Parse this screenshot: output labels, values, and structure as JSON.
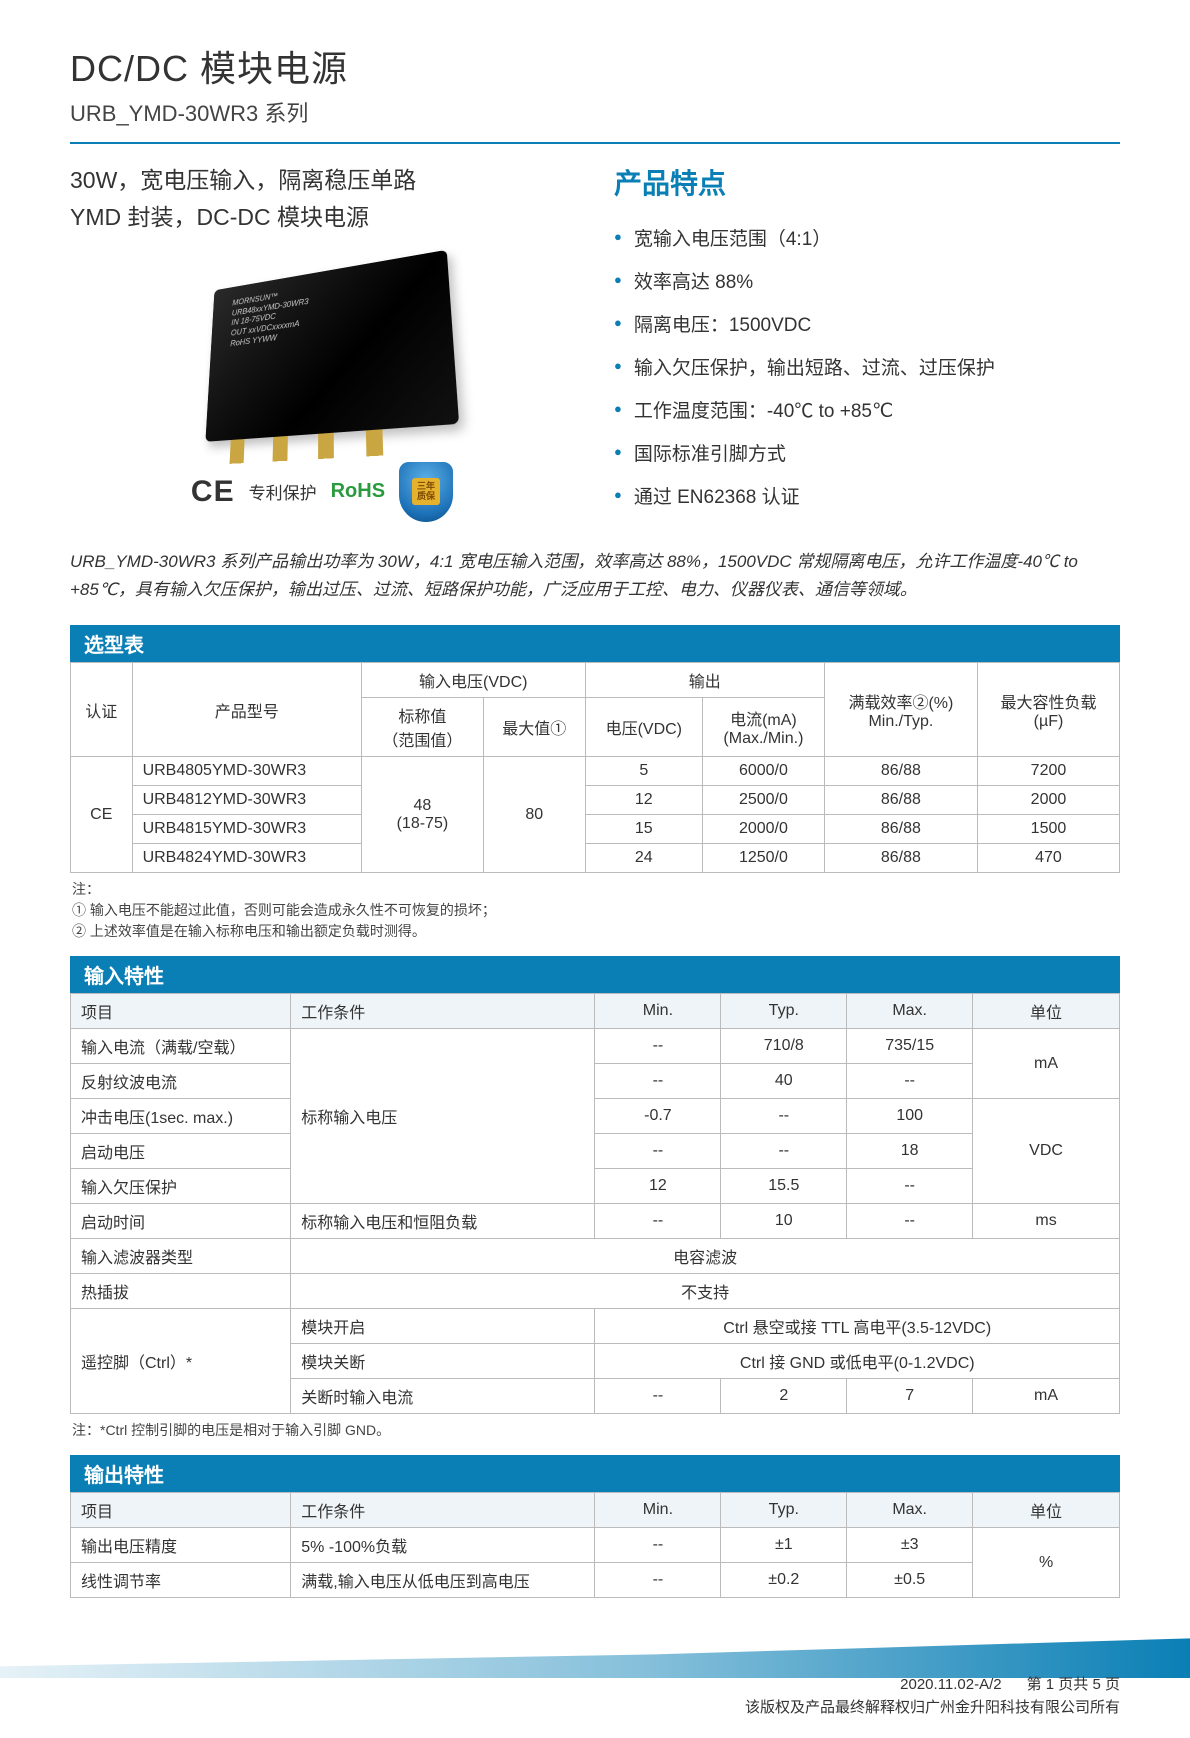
{
  "header": {
    "title": "DC/DC 模块电源",
    "subtitle": "URB_YMD-30WR3 系列"
  },
  "intro": {
    "line1": "30W，宽电压输入，隔离稳压单路",
    "line2": "YMD 封装，DC-DC 模块电源",
    "module_text": "MORNSUN™\nURB48xxYMD-30WR3\nIN 18-75VDC\nOUT xxVDCxxxxmA\nRoHS    YYWW",
    "ce": "CE",
    "patent": "专利保护",
    "rohs": "RoHS",
    "shield": "三年\n质保"
  },
  "features": {
    "title": "产品特点",
    "items": [
      "宽输入电压范围（4:1）",
      "效率高达 88%",
      "隔离电压：1500VDC",
      "输入欠压保护，输出短路、过流、过压保护",
      "工作温度范围：-40℃ to +85℃",
      "国际标准引脚方式",
      "通过 EN62368 认证"
    ]
  },
  "description": "URB_YMD-30WR3 系列产品输出功率为 30W，4:1 宽电压输入范围，效率高达 88%，1500VDC 常规隔离电压，允许工作温度-40℃ to +85℃，具有输入欠压保护，输出过压、过流、短路保护功能，广泛应用于工控、电力、仪器仪表、通信等领域。",
  "selection": {
    "title": "选型表",
    "headers": {
      "cert": "认证",
      "model": "产品型号",
      "vin": "输入电压(VDC)",
      "vin_nom": "标称值\n（范围值）",
      "vin_max": "最大值①",
      "output": "输出",
      "vout": "电压(VDC)",
      "iout": "电流(mA)\n(Max./Min.)",
      "eff": "满载效率②(%)\nMin./Typ.",
      "cap": "最大容性负载\n(µF)"
    },
    "cert_val": "CE",
    "vin_nom_val": "48\n(18-75)",
    "vin_max_val": "80",
    "rows": [
      {
        "model": "URB4805YMD-30WR3",
        "vout": "5",
        "iout": "6000/0",
        "eff": "86/88",
        "cap": "7200"
      },
      {
        "model": "URB4812YMD-30WR3",
        "vout": "12",
        "iout": "2500/0",
        "eff": "86/88",
        "cap": "2000"
      },
      {
        "model": "URB4815YMD-30WR3",
        "vout": "15",
        "iout": "2000/0",
        "eff": "86/88",
        "cap": "1500"
      },
      {
        "model": "URB4824YMD-30WR3",
        "vout": "24",
        "iout": "1250/0",
        "eff": "86/88",
        "cap": "470"
      }
    ],
    "notes": "注：\n① 输入电压不能超过此值，否则可能会造成永久性不可恢复的损坏；\n② 上述效率值是在输入标称电压和输出额定负载时测得。"
  },
  "input": {
    "title": "输入特性",
    "headers": {
      "item": "项目",
      "cond": "工作条件",
      "min": "Min.",
      "typ": "Typ.",
      "max": "Max.",
      "unit": "单位"
    },
    "cond_nominal": "标称输入电压",
    "cond_startup": "标称输入电压和恒阻负载",
    "filter_type_label": "输入滤波器类型",
    "filter_type_val": "电容滤波",
    "hotplug_label": "热插拔",
    "hotplug_val": "不支持",
    "ctrl_label": "遥控脚（Ctrl）*",
    "ctrl_on_cond": "模块开启",
    "ctrl_on_val": "Ctrl 悬空或接 TTL 高电平(3.5-12VDC)",
    "ctrl_off_cond": "模块关断",
    "ctrl_off_val": "Ctrl 接 GND 或低电平(0-1.2VDC)",
    "ctrl_cur_cond": "关断时输入电流",
    "rows": [
      {
        "item": "输入电流（满载/空载）",
        "min": "--",
        "typ": "710/8",
        "max": "735/15",
        "unit": "mA"
      },
      {
        "item": "反射纹波电流",
        "min": "--",
        "typ": "40",
        "max": "--",
        "unit": ""
      },
      {
        "item": "冲击电压(1sec. max.)",
        "min": "-0.7",
        "typ": "--",
        "max": "100",
        "unit": ""
      },
      {
        "item": "启动电压",
        "min": "--",
        "typ": "--",
        "max": "18",
        "unit": "VDC"
      },
      {
        "item": "输入欠压保护",
        "min": "12",
        "typ": "15.5",
        "max": "--",
        "unit": ""
      },
      {
        "item": "启动时间",
        "min": "--",
        "typ": "10",
        "max": "--",
        "unit": "ms"
      }
    ],
    "ctrl_cur": {
      "min": "--",
      "typ": "2",
      "max": "7",
      "unit": "mA"
    },
    "note": "注：*Ctrl 控制引脚的电压是相对于输入引脚 GND。"
  },
  "output": {
    "title": "输出特性",
    "headers": {
      "item": "项目",
      "cond": "工作条件",
      "min": "Min.",
      "typ": "Typ.",
      "max": "Max.",
      "unit": "单位"
    },
    "rows": [
      {
        "item": "输出电压精度",
        "cond": "5% -100%负载",
        "min": "--",
        "typ": "±1",
        "max": "±3"
      },
      {
        "item": "线性调节率",
        "cond": "满载,输入电压从低电压到高电压",
        "min": "--",
        "typ": "±0.2",
        "max": "±0.5"
      }
    ],
    "unit": "%"
  },
  "footer": {
    "date_page": "2020.11.02-A/2      第 1 页共 5 页",
    "copyright": "该版权及产品最终解释权归广州金升阳科技有限公司所有"
  }
}
